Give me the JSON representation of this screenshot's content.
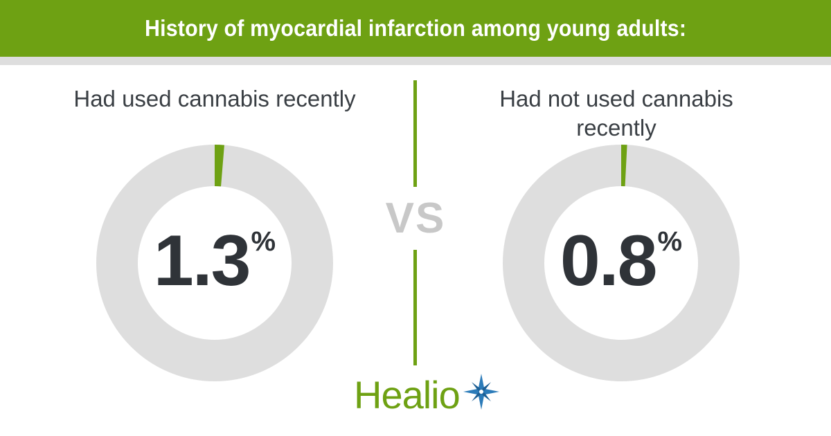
{
  "header": {
    "title": "History of myocardial infarction among young adults:"
  },
  "divider": {
    "vs_label": "VS"
  },
  "logo": {
    "text": "Healio",
    "icon": "healio-star-icon"
  },
  "colors": {
    "accent_green": "#6ea113",
    "ring_gray": "#dedede",
    "value_dark": "#2f3338",
    "vs_gray": "#c8c8c8",
    "logo_star_blue": "#2b7bb9"
  },
  "chart_data": [
    {
      "type": "pie",
      "title": "Had used cannabis recently",
      "categories": [
        "Had used cannabis recently"
      ],
      "values": [
        1.3
      ],
      "value_label": "1.3",
      "unit": "%"
    },
    {
      "type": "pie",
      "title": "Had not used cannabis recently",
      "categories": [
        "Had not used cannabis recently"
      ],
      "values": [
        0.8
      ],
      "value_label": "0.8",
      "unit": "%"
    }
  ]
}
